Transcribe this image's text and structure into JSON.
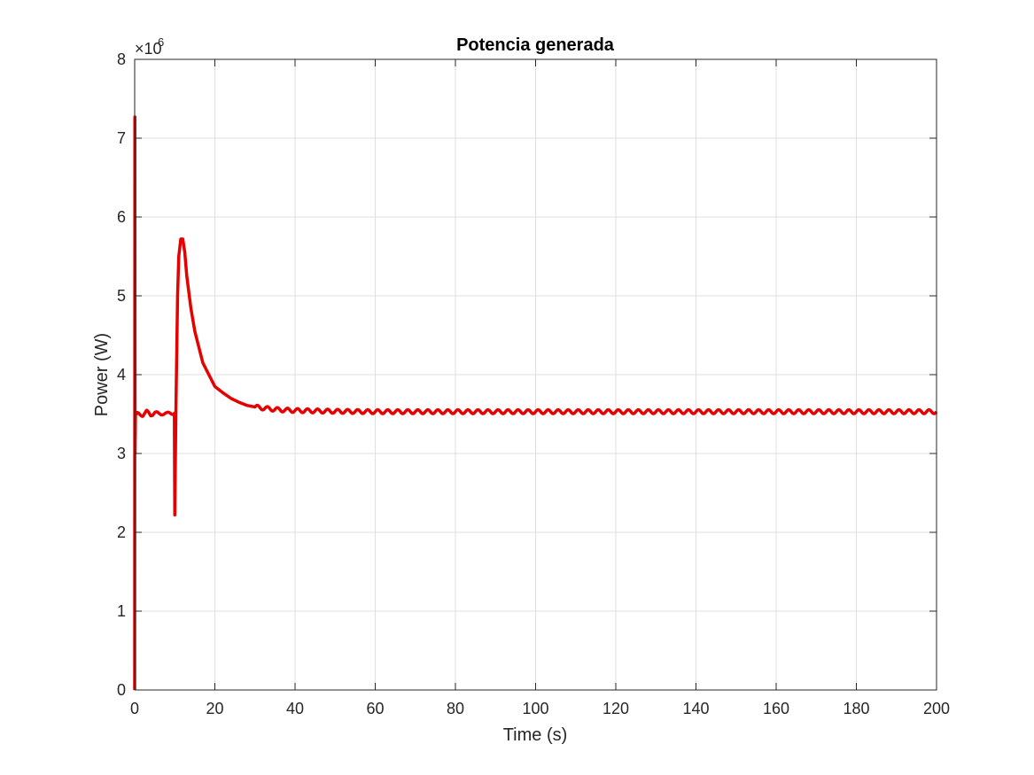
{
  "chart_data": {
    "type": "line",
    "title": "Potencia generada",
    "xlabel": "Time (s)",
    "ylabel": "Power (W)",
    "y_exponent_base": "×10",
    "y_exponent_power": "6",
    "xlim": [
      0,
      200
    ],
    "ylim": [
      0,
      8000000
    ],
    "x_ticks": [
      0,
      20,
      40,
      60,
      80,
      100,
      120,
      140,
      160,
      180,
      200
    ],
    "y_ticks": [
      0,
      1000000,
      2000000,
      3000000,
      4000000,
      5000000,
      6000000,
      7000000,
      8000000
    ],
    "x_tick_labels": [
      "0",
      "20",
      "40",
      "60",
      "80",
      "100",
      "120",
      "140",
      "160",
      "180",
      "200"
    ],
    "y_tick_labels": [
      "0",
      "1",
      "2",
      "3",
      "4",
      "5",
      "6",
      "7",
      "8"
    ],
    "grid": true,
    "line_color": "#e60000",
    "series": [
      {
        "x": [
          0,
          0.05,
          0.1,
          0.2,
          0.4,
          1,
          2,
          3,
          4,
          5,
          6,
          7,
          8,
          9,
          9.9,
          10,
          10.3,
          10.7,
          11,
          11.5,
          12,
          12.5,
          13,
          14,
          15,
          16,
          17,
          18,
          19,
          20,
          22,
          24,
          26,
          28,
          30,
          33,
          36,
          40,
          45,
          50,
          60,
          80,
          100,
          120,
          140,
          160,
          180,
          200
        ],
        "y": [
          0,
          7270000,
          3000000,
          3500000,
          3500000,
          3500000,
          3490000,
          3530000,
          3490000,
          3520000,
          3500000,
          3510000,
          3500000,
          3520000,
          3510000,
          2220000,
          3600000,
          5000000,
          5500000,
          5720000,
          5720000,
          5550000,
          5250000,
          4850000,
          4550000,
          4350000,
          4150000,
          4050000,
          3950000,
          3850000,
          3770000,
          3700000,
          3650000,
          3610000,
          3590000,
          3570000,
          3555000,
          3545000,
          3540000,
          3535000,
          3530000,
          3530000,
          3530000,
          3530000,
          3530000,
          3530000,
          3530000,
          3530000
        ]
      }
    ],
    "ripple_amplitude": 25000,
    "ripple_period": 2.5
  }
}
